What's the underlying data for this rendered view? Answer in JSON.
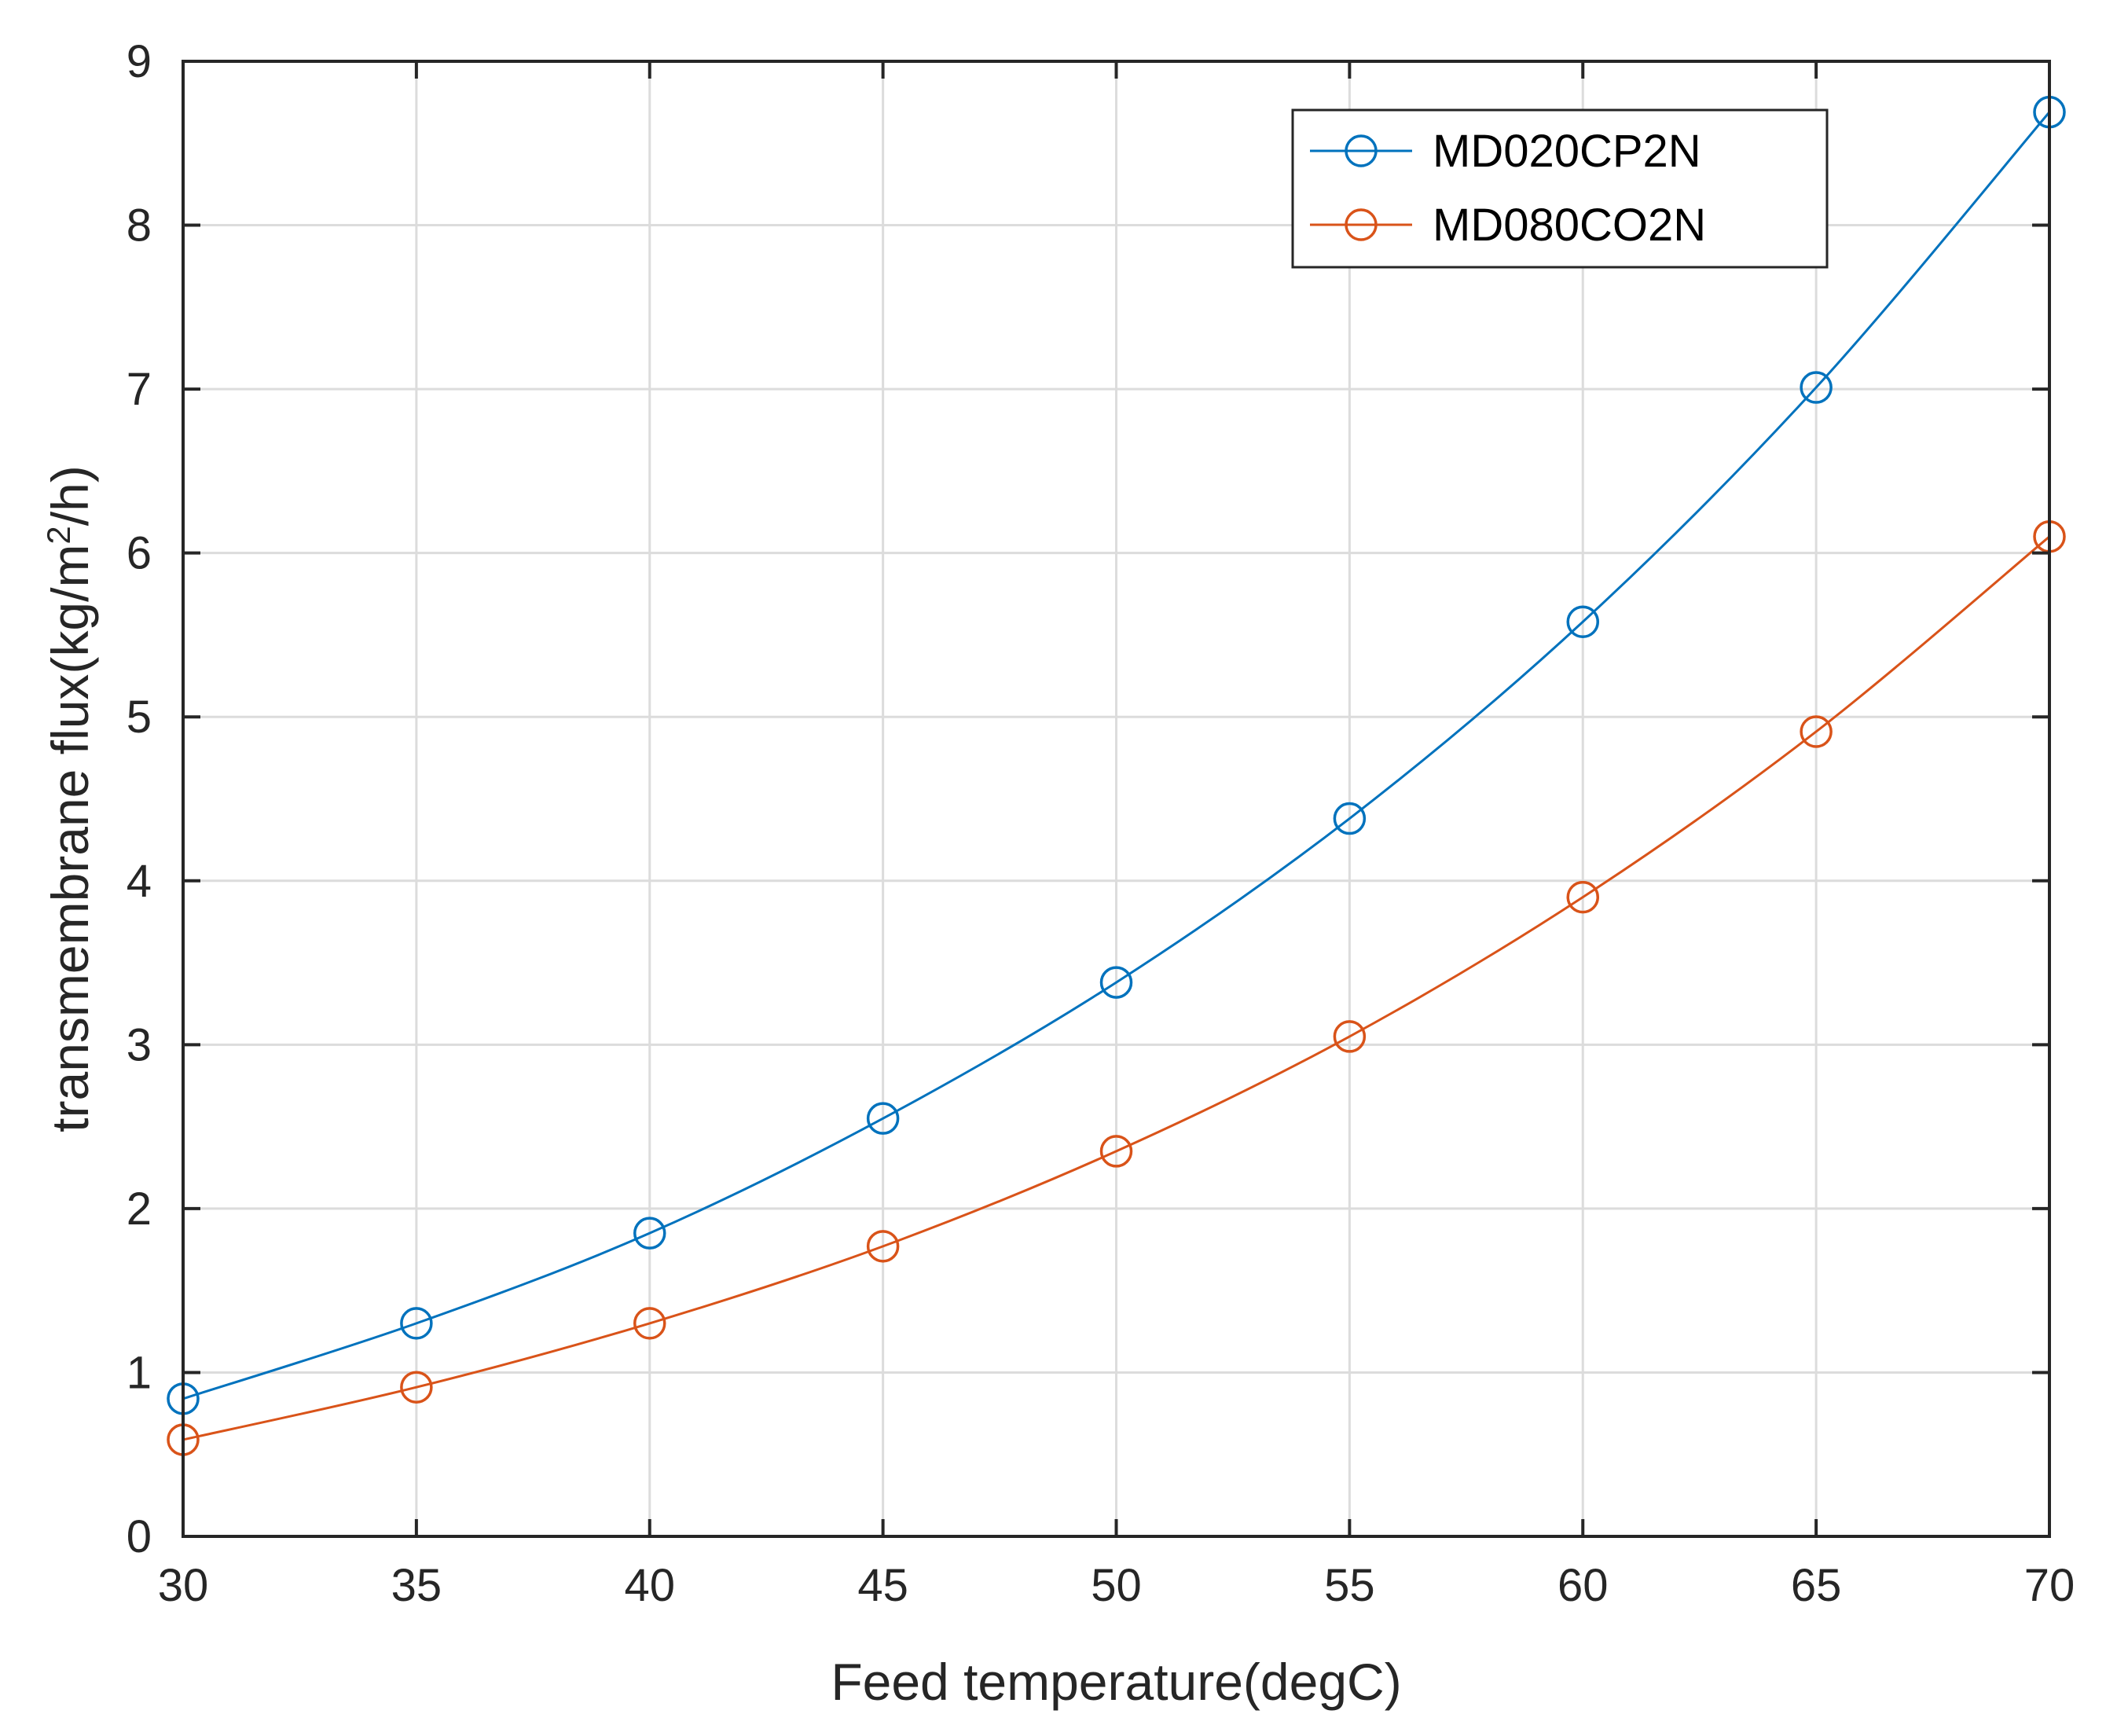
{
  "chart_data": {
    "type": "line",
    "title": "",
    "xlabel": "Feed temperature(degC)",
    "ylabel": {
      "prefix": "transmembrane flux(kg/m",
      "superscript": "2",
      "suffix": "/h)"
    },
    "xlim": [
      30,
      70
    ],
    "ylim": [
      0,
      9
    ],
    "xticks": [
      30,
      35,
      40,
      45,
      50,
      55,
      60,
      65,
      70
    ],
    "yticks": [
      0,
      1,
      2,
      3,
      4,
      5,
      6,
      7,
      8,
      9
    ],
    "grid": true,
    "legend_position": "top-right",
    "x": [
      30,
      35,
      40,
      45,
      50,
      55,
      60,
      65,
      70
    ],
    "series": [
      {
        "name": "MD020CP2N",
        "color": "#0072BD",
        "marker": "circle",
        "values": [
          0.84,
          1.3,
          1.85,
          2.55,
          3.38,
          4.38,
          5.58,
          7.01,
          8.69
        ]
      },
      {
        "name": "MD080CO2N",
        "color": "#D95319",
        "marker": "circle",
        "values": [
          0.59,
          0.91,
          1.3,
          1.77,
          2.35,
          3.05,
          3.9,
          4.91,
          6.1
        ]
      }
    ]
  }
}
